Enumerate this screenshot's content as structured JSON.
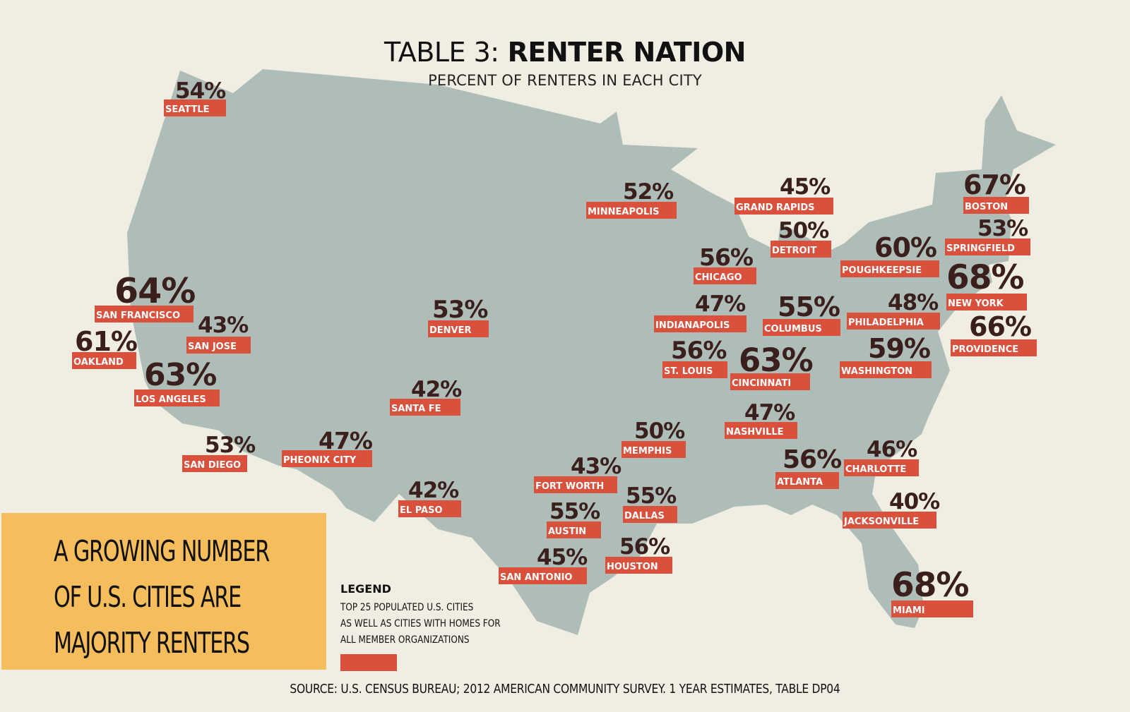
{
  "title": {
    "prefix": "TABLE 3:",
    "main": "RENTER NATION"
  },
  "subtitle": "PERCENT OF RENTERS IN EACH CITY",
  "colors": {
    "background": "#f0ede3",
    "map": "#aebdb8",
    "label": "#d9513c",
    "percent": "#3a1f1c",
    "banner": "#f5bd5c"
  },
  "cities": [
    {
      "name": "SEATTLE",
      "pct": "54%"
    },
    {
      "name": "MINNEAPOLIS",
      "pct": "52%"
    },
    {
      "name": "GRAND RAPIDS",
      "pct": "45%"
    },
    {
      "name": "BOSTON",
      "pct": "67%"
    },
    {
      "name": "DETROIT",
      "pct": "50%"
    },
    {
      "name": "SPRINGFIELD",
      "pct": "53%"
    },
    {
      "name": "CHICAGO",
      "pct": "56%"
    },
    {
      "name": "POUGHKEEPSIE",
      "pct": "60%"
    },
    {
      "name": "NEW YORK",
      "pct": "68%"
    },
    {
      "name": "SAN FRANCISCO",
      "pct": "64%"
    },
    {
      "name": "DENVER",
      "pct": "53%"
    },
    {
      "name": "INDIANAPOLIS",
      "pct": "47%"
    },
    {
      "name": "COLUMBUS",
      "pct": "55%"
    },
    {
      "name": "PHILADELPHIA",
      "pct": "48%"
    },
    {
      "name": "SAN JOSE",
      "pct": "43%"
    },
    {
      "name": "PROVIDENCE",
      "pct": "66%"
    },
    {
      "name": "OAKLAND",
      "pct": "61%"
    },
    {
      "name": "ST. LOUIS",
      "pct": "56%"
    },
    {
      "name": "WASHINGTON",
      "pct": "59%"
    },
    {
      "name": "LOS ANGELES",
      "pct": "63%"
    },
    {
      "name": "CINCINNATI",
      "pct": "63%"
    },
    {
      "name": "SANTA FE",
      "pct": "42%"
    },
    {
      "name": "NASHVILLE",
      "pct": "47%"
    },
    {
      "name": "SAN DIEGO",
      "pct": "53%"
    },
    {
      "name": "PHEONIX CITY",
      "pct": "47%"
    },
    {
      "name": "MEMPHIS",
      "pct": "50%"
    },
    {
      "name": "ATLANTA",
      "pct": "56%"
    },
    {
      "name": "CHARLOTTE",
      "pct": "46%"
    },
    {
      "name": "FORT WORTH",
      "pct": "43%"
    },
    {
      "name": "EL PASO",
      "pct": "42%"
    },
    {
      "name": "DALLAS",
      "pct": "55%"
    },
    {
      "name": "JACKSONVILLE",
      "pct": "40%"
    },
    {
      "name": "AUSTIN",
      "pct": "55%"
    },
    {
      "name": "HOUSTON",
      "pct": "56%"
    },
    {
      "name": "SAN ANTONIO",
      "pct": "45%"
    },
    {
      "name": "MIAMI",
      "pct": "68%"
    }
  ],
  "banner": {
    "lines": [
      "A GROWING NUMBER",
      "OF U.S. CITIES ARE",
      "MAJORITY RENTERS"
    ]
  },
  "legend": {
    "title": "LEGEND",
    "lines": [
      "TOP 25 POPULATED  U.S. CITIES",
      "AS WELL AS CITIES WITH HOMES FOR",
      "ALL MEMBER ORGANIZATIONS"
    ]
  },
  "source": "SOURCE: U.S. CENSUS BUREAU; 2012 AMERICAN COMMUNITY SURVEY.  1 YEAR ESTIMATES, TABLE DP04"
}
